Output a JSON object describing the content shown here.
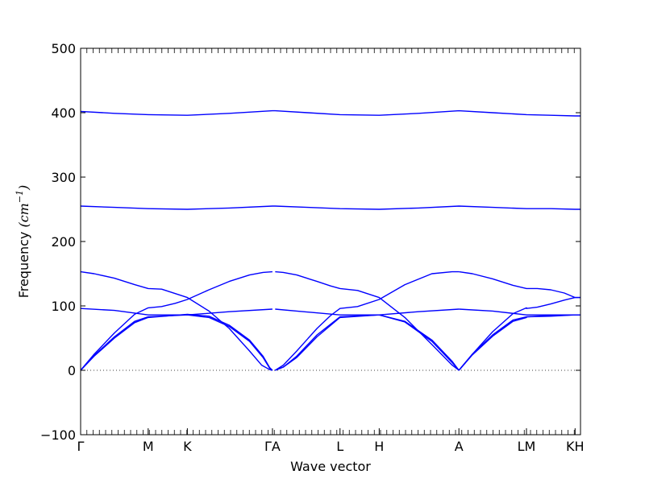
{
  "chart_data": {
    "type": "line",
    "xlabel": "Wave vector",
    "ylabel": "Frequency",
    "ylabel_unit": "(cm",
    "ylabel_unit_exp": "−1",
    "ylabel_unit_close": ")",
    "ylim": [
      -100,
      500
    ],
    "yticks": [
      -100,
      0,
      100,
      200,
      300,
      400,
      500
    ],
    "xlim": [
      0,
      3.7
    ],
    "xticks": [
      {
        "label": "Γ",
        "x": 0
      },
      {
        "label": "M",
        "x": 0.5
      },
      {
        "label": "K",
        "x": 0.79
      },
      {
        "label": "ΓA",
        "x": 1.42
      },
      {
        "label": "L",
        "x": 1.92
      },
      {
        "label": "H",
        "x": 2.21
      },
      {
        "label": "A",
        "x": 2.8
      },
      {
        "label": "LM",
        "x": 3.3
      },
      {
        "label": "KH",
        "x": 3.66
      }
    ],
    "zero_line": {
      "y": 0,
      "style": "dotted"
    },
    "line_color": "#0000ff",
    "series": [
      {
        "x": [
          0,
          0.25,
          0.5,
          0.79,
          1.1,
          1.42,
          1.44,
          1.68,
          1.92,
          2.21,
          2.5,
          2.8,
          3.05,
          3.3,
          3.3,
          3.48,
          3.66,
          3.7
        ],
        "y": [
          402,
          399,
          397,
          396,
          399,
          403,
          403,
          400,
          397,
          396,
          399,
          403,
          400,
          397,
          397,
          396,
          395,
          395
        ]
      },
      {
        "x": [
          0,
          0.25,
          0.5,
          0.79,
          1.1,
          1.42,
          1.44,
          1.68,
          1.92,
          2.21,
          2.5,
          2.8,
          3.05,
          3.3,
          3.3,
          3.48,
          3.66,
          3.7
        ],
        "y": [
          255,
          253,
          251,
          250,
          252,
          255,
          255,
          253,
          251,
          250,
          252,
          255,
          253,
          251,
          251,
          251,
          250,
          250
        ]
      },
      {
        "x": [
          0,
          0.1,
          0.25,
          0.4,
          0.5,
          0.6,
          0.7,
          0.79,
          0.95,
          1.1,
          1.25,
          1.35,
          1.42
        ],
        "y": [
          0,
          25,
          58,
          87,
          97,
          99,
          104,
          110,
          125,
          138,
          148,
          152,
          153
        ]
      },
      {
        "x": [
          0,
          0.1,
          0.25,
          0.4,
          0.5,
          0.6,
          0.79,
          0.95,
          1.1,
          1.25,
          1.34,
          1.4,
          1.42
        ],
        "y": [
          153,
          150,
          143,
          133,
          127,
          126,
          113,
          92,
          65,
          30,
          8,
          1,
          0
        ]
      },
      {
        "x": [
          0,
          0.25,
          0.5,
          0.79,
          1.1,
          1.42
        ],
        "y": [
          96,
          93,
          86,
          86,
          91,
          95
        ]
      },
      {
        "x": [
          0,
          0.1,
          0.25,
          0.4,
          0.5,
          0.79,
          0.95,
          1.1,
          1.25,
          1.35,
          1.4,
          1.42
        ],
        "y": [
          0,
          23,
          52,
          76,
          83,
          86,
          82,
          68,
          45,
          20,
          3,
          0
        ]
      },
      {
        "x": [
          0,
          0.1,
          0.25,
          0.4,
          0.5,
          0.79,
          0.95,
          1.1,
          1.25,
          1.35,
          1.4,
          1.42
        ],
        "y": [
          0,
          22,
          50,
          74,
          82,
          87,
          84,
          70,
          47,
          22,
          4,
          0
        ]
      },
      {
        "x": [
          1.44,
          1.5,
          1.6,
          1.75,
          1.85,
          1.92,
          2.05,
          2.21,
          2.4,
          2.6,
          2.75,
          2.8
        ],
        "y": [
          0,
          8,
          30,
          65,
          85,
          96,
          99,
          110,
          133,
          150,
          153,
          153
        ]
      },
      {
        "x": [
          1.44,
          1.5,
          1.6,
          1.75,
          1.85,
          1.92,
          2.05,
          2.21,
          2.4,
          2.6,
          2.75,
          2.8
        ],
        "y": [
          153,
          152,
          148,
          138,
          131,
          127,
          124,
          113,
          82,
          40,
          8,
          0
        ]
      },
      {
        "x": [
          1.44,
          1.6,
          1.92,
          2.21,
          2.5,
          2.8
        ],
        "y": [
          95,
          92,
          86,
          86,
          91,
          95
        ]
      },
      {
        "x": [
          1.44,
          1.5,
          1.6,
          1.75,
          1.92,
          2.21,
          2.4,
          2.6,
          2.75,
          2.8
        ],
        "y": [
          0,
          5,
          22,
          55,
          83,
          86,
          75,
          45,
          12,
          0
        ]
      },
      {
        "x": [
          1.44,
          1.5,
          1.6,
          1.75,
          1.92,
          2.21,
          2.4,
          2.6,
          2.75,
          2.8
        ],
        "y": [
          0,
          5,
          20,
          52,
          82,
          86,
          76,
          47,
          14,
          0
        ]
      },
      {
        "x": [
          2.8,
          2.9,
          3.05,
          3.2,
          3.3,
          3.3,
          3.38,
          3.48,
          3.58,
          3.66,
          3.7
        ],
        "y": [
          0,
          25,
          60,
          88,
          97,
          96,
          98,
          103,
          109,
          113,
          113
        ]
      },
      {
        "x": [
          2.8,
          2.9,
          3.05,
          3.2,
          3.3,
          3.3,
          3.38,
          3.48,
          3.58,
          3.66,
          3.7
        ],
        "y": [
          153,
          150,
          142,
          132,
          127,
          127,
          127,
          125,
          120,
          113,
          113
        ]
      },
      {
        "x": [
          2.8,
          3.05,
          3.3,
          3.3,
          3.48,
          3.66,
          3.7
        ],
        "y": [
          95,
          92,
          86,
          86,
          86,
          86,
          86
        ]
      },
      {
        "x": [
          2.8,
          2.9,
          3.05,
          3.2,
          3.3,
          3.3,
          3.48,
          3.66,
          3.7
        ],
        "y": [
          0,
          25,
          55,
          78,
          83,
          83,
          84,
          86,
          86
        ]
      },
      {
        "x": [
          2.8,
          2.9,
          3.05,
          3.2,
          3.3,
          3.3,
          3.48,
          3.66,
          3.7
        ],
        "y": [
          0,
          24,
          53,
          76,
          82,
          83,
          85,
          86,
          86
        ]
      }
    ]
  }
}
